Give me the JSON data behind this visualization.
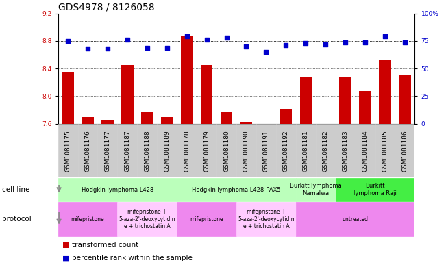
{
  "title": "GDS4978 / 8126058",
  "samples": [
    "GSM1081175",
    "GSM1081176",
    "GSM1081177",
    "GSM1081187",
    "GSM1081188",
    "GSM1081189",
    "GSM1081178",
    "GSM1081179",
    "GSM1081180",
    "GSM1081190",
    "GSM1081191",
    "GSM1081192",
    "GSM1081181",
    "GSM1081182",
    "GSM1081183",
    "GSM1081184",
    "GSM1081185",
    "GSM1081186"
  ],
  "red_values": [
    8.35,
    7.7,
    7.65,
    8.45,
    7.77,
    7.7,
    8.87,
    8.45,
    7.77,
    7.63,
    7.6,
    7.82,
    8.27,
    7.6,
    8.27,
    8.07,
    8.52,
    8.3
  ],
  "blue_values": [
    75,
    68,
    68,
    76,
    69,
    69,
    79,
    76,
    78,
    70,
    65,
    71,
    73,
    72,
    74,
    74,
    79,
    74
  ],
  "ylim_left": [
    7.6,
    9.2
  ],
  "ylim_right": [
    0,
    100
  ],
  "yticks_left": [
    7.6,
    8.0,
    8.4,
    8.8,
    9.2
  ],
  "yticks_right": [
    0,
    25,
    50,
    75,
    100
  ],
  "cell_line_groups": [
    {
      "label": "Hodgkin lymphoma L428",
      "start": 0,
      "end": 5,
      "color": "#bbffbb"
    },
    {
      "label": "Hodgkin lymphoma L428-PAX5",
      "start": 6,
      "end": 11,
      "color": "#bbffbb"
    },
    {
      "label": "Burkitt lymphoma\nNamalwa",
      "start": 12,
      "end": 13,
      "color": "#bbffbb"
    },
    {
      "label": "Burkitt\nlymphoma Raji",
      "start": 14,
      "end": 17,
      "color": "#44ee44"
    }
  ],
  "protocol_groups": [
    {
      "label": "mifepristone",
      "start": 0,
      "end": 2,
      "color": "#ee88ee"
    },
    {
      "label": "mifepristone +\n5-aza-2'-deoxycytidin\ne + trichostatin A",
      "start": 3,
      "end": 5,
      "color": "#ffccff"
    },
    {
      "label": "mifepristone",
      "start": 6,
      "end": 8,
      "color": "#ee88ee"
    },
    {
      "label": "mifepristone +\n5-aza-2'-deoxycytidin\ne + trichostatin A",
      "start": 9,
      "end": 11,
      "color": "#ffccff"
    },
    {
      "label": "untreated",
      "start": 12,
      "end": 17,
      "color": "#ee88ee"
    }
  ],
  "red_color": "#cc0000",
  "blue_color": "#0000cc",
  "bar_bottom": 7.6,
  "grid_lines": [
    8.0,
    8.4,
    8.8
  ],
  "tick_bg_color": "#cccccc",
  "title_fontsize": 10,
  "tick_fontsize": 6.5,
  "label_fontsize": 7.5,
  "arrow_color": "#888888"
}
